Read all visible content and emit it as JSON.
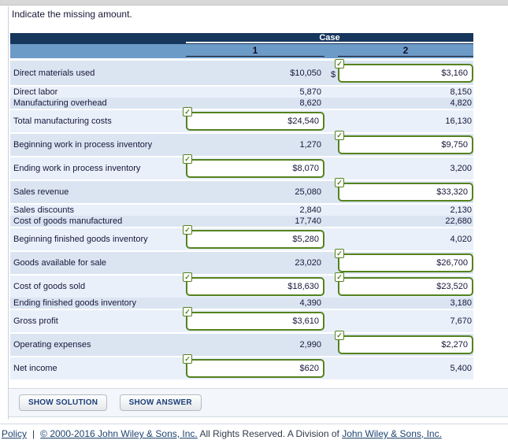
{
  "title": "Indicate the missing amount.",
  "colors": {
    "header_navy": "#16365c",
    "header_blue": "#6d9bc8",
    "stripe_dark": "#dbe5f2",
    "stripe_light": "#e9f0fa",
    "accent_green": "#55821e"
  },
  "table": {
    "case_header": "Case",
    "columns": [
      "1",
      "2"
    ],
    "rows": [
      {
        "label": "Direct materials used",
        "case1": {
          "type": "text",
          "value": "$10,050"
        },
        "case2": {
          "type": "input",
          "value": "$3,160",
          "prefix": "$"
        },
        "h": "xtall",
        "gap": true
      },
      {
        "label": "Direct labor",
        "case1": {
          "type": "text",
          "value": "5,870"
        },
        "case2": {
          "type": "text",
          "value": "8,150"
        },
        "h": "short",
        "gap": false
      },
      {
        "label": "Manufacturing overhead",
        "case1": {
          "type": "text",
          "value": "8,620"
        },
        "case2": {
          "type": "text",
          "value": "4,820"
        },
        "h": "short",
        "gap": true
      },
      {
        "label": "Total manufacturing costs",
        "case1": {
          "type": "input",
          "value": "$24,540"
        },
        "case2": {
          "type": "text",
          "value": "16,130"
        },
        "h": "tall",
        "gap": true
      },
      {
        "label": "Beginning work in process inventory",
        "case1": {
          "type": "text",
          "value": "1,270"
        },
        "case2": {
          "type": "input",
          "value": "$9,750"
        },
        "h": "tall",
        "gap": true
      },
      {
        "label": "Ending work in process inventory",
        "case1": {
          "type": "input",
          "value": "$8,070"
        },
        "case2": {
          "type": "text",
          "value": "3,200"
        },
        "h": "tall",
        "gap": true
      },
      {
        "label": "Sales revenue",
        "case1": {
          "type": "text",
          "value": "25,080"
        },
        "case2": {
          "type": "input",
          "value": "$33,320"
        },
        "h": "tall",
        "gap": true
      },
      {
        "label": "Sales discounts",
        "case1": {
          "type": "text",
          "value": "2,840"
        },
        "case2": {
          "type": "text",
          "value": "2,130"
        },
        "h": "short",
        "gap": false
      },
      {
        "label": "Cost of goods manufactured",
        "case1": {
          "type": "text",
          "value": "17,740"
        },
        "case2": {
          "type": "text",
          "value": "22,680"
        },
        "h": "short",
        "gap": true
      },
      {
        "label": "Beginning finished goods inventory",
        "case1": {
          "type": "input",
          "value": "$5,280"
        },
        "case2": {
          "type": "text",
          "value": "4,020"
        },
        "h": "tall",
        "gap": true
      },
      {
        "label": "Goods available for sale",
        "case1": {
          "type": "text",
          "value": "23,020"
        },
        "case2": {
          "type": "input",
          "value": "$26,700"
        },
        "h": "tall",
        "gap": true
      },
      {
        "label": "Cost of goods sold",
        "case1": {
          "type": "input",
          "value": "$18,630"
        },
        "case2": {
          "type": "input",
          "value": "$23,520"
        },
        "h": "tall",
        "gap": false
      },
      {
        "label": "Ending finished goods inventory",
        "case1": {
          "type": "text",
          "value": "4,390"
        },
        "case2": {
          "type": "text",
          "value": "3,180"
        },
        "h": "short",
        "gap": true
      },
      {
        "label": "Gross profit",
        "case1": {
          "type": "input",
          "value": "$3,610"
        },
        "case2": {
          "type": "text",
          "value": "7,670"
        },
        "h": "tall",
        "gap": true
      },
      {
        "label": "Operating expenses",
        "case1": {
          "type": "text",
          "value": "2,990"
        },
        "case2": {
          "type": "input",
          "value": "$2,270"
        },
        "h": "tall",
        "gap": true
      },
      {
        "label": "Net income",
        "case1": {
          "type": "input",
          "value": "$620"
        },
        "case2": {
          "type": "text",
          "value": "5,400"
        },
        "h": "tall",
        "gap": false
      }
    ]
  },
  "buttons": {
    "show_solution": "SHOW SOLUTION",
    "show_answer": "SHOW ANSWER"
  },
  "footer": {
    "parts": [
      {
        "text": "Policy",
        "link": true
      },
      {
        "text": "|",
        "link": false,
        "sep": true
      },
      {
        "text": "© 2000-2016 John Wiley & Sons, Inc.",
        "link": true
      },
      {
        "text": " All Rights Reserved. A Division of ",
        "link": false
      },
      {
        "text": "John Wiley & Sons, Inc.",
        "link": true
      }
    ],
    "checkmark_icon": "✓"
  }
}
